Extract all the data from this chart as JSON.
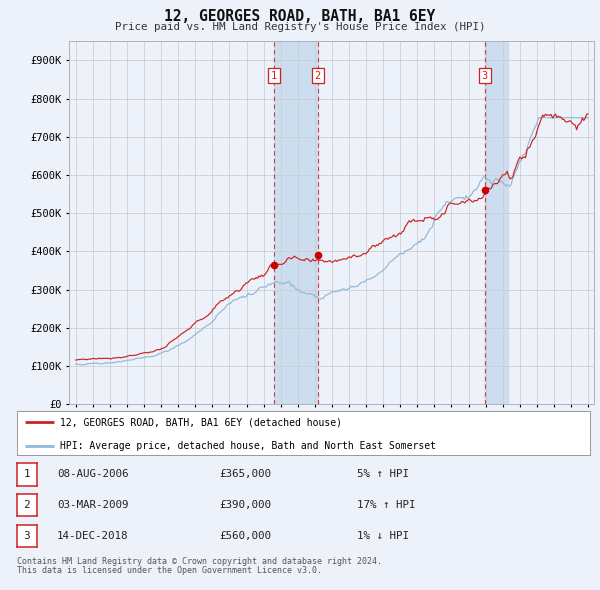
{
  "title": "12, GEORGES ROAD, BATH, BA1 6EY",
  "subtitle": "Price paid vs. HM Land Registry's House Price Index (HPI)",
  "legend_line1": "12, GEORGES ROAD, BATH, BA1 6EY (detached house)",
  "legend_line2": "HPI: Average price, detached house, Bath and North East Somerset",
  "transactions": [
    {
      "num": 1,
      "date": "08-AUG-2006",
      "price": "£365,000",
      "pct": "5% ↑ HPI"
    },
    {
      "num": 2,
      "date": "03-MAR-2009",
      "price": "£390,000",
      "pct": "17% ↑ HPI"
    },
    {
      "num": 3,
      "date": "14-DEC-2018",
      "price": "£560,000",
      "pct": "1% ↓ HPI"
    }
  ],
  "transaction_years": [
    2006.605,
    2009.172,
    2018.959
  ],
  "transaction_prices": [
    365000,
    390000,
    560000
  ],
  "copyright_line1": "Contains HM Land Registry data © Crown copyright and database right 2024.",
  "copyright_line2": "This data is licensed under the Open Government Licence v3.0.",
  "ylim_max": 950000,
  "bg_color": "#edf1fa",
  "red_color": "#cc2222",
  "blue_color": "#90b8d8",
  "grid_color": "#cccccc",
  "shade_color": "#ccddf0",
  "marker_color": "#cc0000",
  "box_color": "#cc2222",
  "legend_border": "#999999",
  "spine_color": "#aaaaaa",
  "title_color": "#111111",
  "text_color": "#222222",
  "copyright_color": "#555555"
}
